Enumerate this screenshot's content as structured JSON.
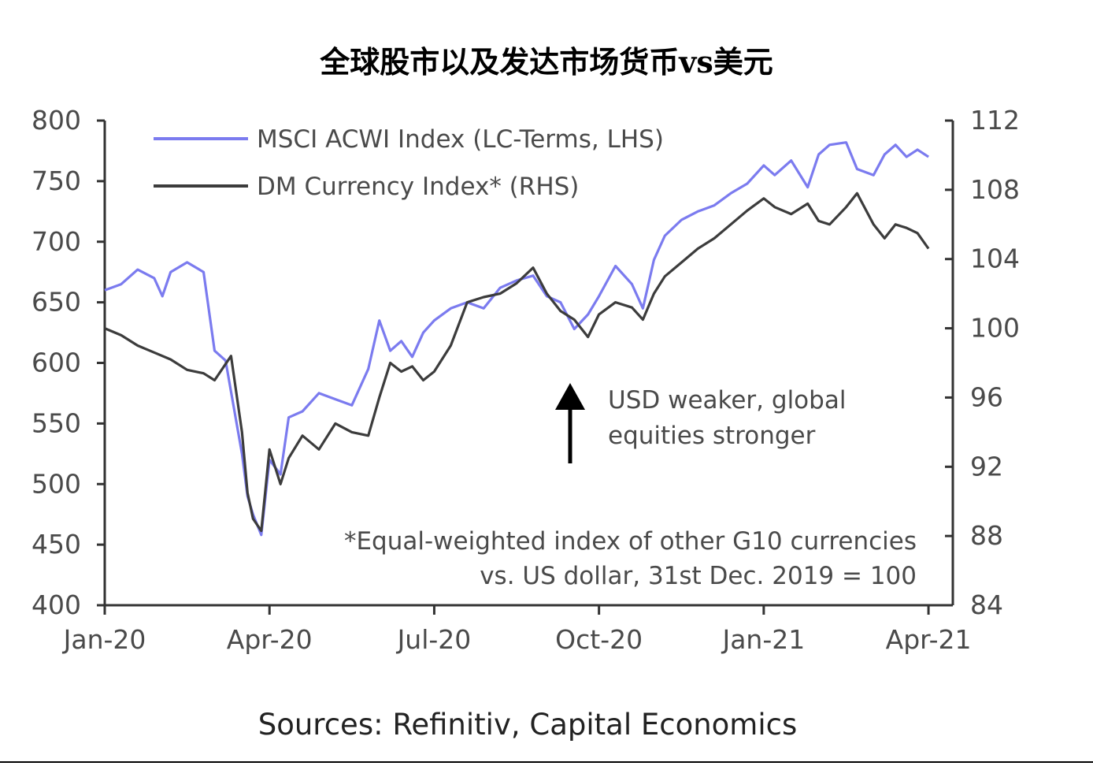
{
  "title": "全球股市以及发达市场货币vs美元",
  "source": "Sources: Refinitiv, Capital Economics",
  "chart_data": {
    "type": "line",
    "title": "全球股市以及发达市场货币vs美元",
    "x_tick_labels": [
      "Jan-20",
      "Apr-20",
      "Jul-20",
      "Oct-20",
      "Jan-21",
      "Apr-21"
    ],
    "x_tick_positions": [
      0,
      3,
      6,
      9,
      12,
      15
    ],
    "xlim": [
      0,
      15.3
    ],
    "y_left": {
      "ticks": [
        400,
        450,
        500,
        550,
        600,
        650,
        700,
        750,
        800
      ],
      "ylim": [
        400,
        800
      ]
    },
    "y_right": {
      "ticks": [
        84,
        88,
        92,
        96,
        100,
        104,
        108,
        112
      ],
      "ylim": [
        84,
        112
      ]
    },
    "legend": {
      "position": "top-left"
    },
    "series": [
      {
        "name": "MSCI ACWI Index (LC-Terms, LHS)",
        "axis": "left",
        "color": "#7b7bef",
        "x": [
          0,
          0.3,
          0.6,
          0.9,
          1.05,
          1.2,
          1.5,
          1.8,
          2.0,
          2.2,
          2.5,
          2.6,
          2.7,
          2.85,
          3.0,
          3.2,
          3.35,
          3.6,
          3.9,
          4.2,
          4.5,
          4.8,
          5.0,
          5.2,
          5.4,
          5.6,
          5.8,
          6.0,
          6.3,
          6.6,
          6.9,
          7.2,
          7.5,
          7.8,
          8.05,
          8.3,
          8.55,
          8.8,
          9.0,
          9.3,
          9.6,
          9.8,
          10.0,
          10.2,
          10.5,
          10.8,
          11.1,
          11.4,
          11.7,
          12.0,
          12.2,
          12.5,
          12.8,
          13.0,
          13.2,
          13.5,
          13.7,
          14.0,
          14.2,
          14.4,
          14.6,
          14.8,
          15.0
        ],
        "y": [
          660,
          665,
          677,
          670,
          655,
          675,
          683,
          675,
          610,
          602,
          525,
          490,
          475,
          458,
          520,
          508,
          555,
          560,
          575,
          570,
          565,
          595,
          635,
          610,
          618,
          605,
          625,
          635,
          645,
          650,
          645,
          662,
          668,
          672,
          655,
          650,
          628,
          640,
          655,
          680,
          665,
          645,
          685,
          705,
          718,
          725,
          730,
          740,
          748,
          763,
          755,
          767,
          745,
          772,
          780,
          782,
          760,
          755,
          772,
          780,
          770,
          776,
          770
        ]
      },
      {
        "name": "DM Currency Index* (RHS)",
        "axis": "right",
        "color": "#3c3c3c",
        "x": [
          0,
          0.3,
          0.6,
          0.9,
          1.2,
          1.5,
          1.8,
          2.0,
          2.3,
          2.5,
          2.6,
          2.7,
          2.85,
          3.0,
          3.2,
          3.35,
          3.6,
          3.9,
          4.2,
          4.5,
          4.8,
          5.0,
          5.2,
          5.4,
          5.6,
          5.8,
          6.0,
          6.3,
          6.6,
          6.9,
          7.2,
          7.5,
          7.8,
          8.05,
          8.3,
          8.55,
          8.8,
          9.0,
          9.3,
          9.6,
          9.8,
          10.0,
          10.2,
          10.5,
          10.8,
          11.1,
          11.4,
          11.7,
          12.0,
          12.2,
          12.5,
          12.8,
          13.0,
          13.2,
          13.5,
          13.7,
          14.0,
          14.2,
          14.4,
          14.6,
          14.8,
          15.0
        ],
        "y": [
          100.0,
          99.6,
          99.0,
          98.6,
          98.2,
          97.6,
          97.4,
          97.0,
          98.4,
          94.0,
          90.5,
          89.0,
          88.3,
          93.0,
          91.0,
          92.5,
          93.8,
          93.0,
          94.5,
          94.0,
          93.8,
          96.0,
          98.0,
          97.5,
          97.8,
          97.0,
          97.5,
          99.0,
          101.5,
          101.8,
          102.0,
          102.6,
          103.5,
          102.0,
          101.0,
          100.5,
          99.5,
          100.8,
          101.5,
          101.2,
          100.5,
          102.0,
          103.0,
          103.8,
          104.6,
          105.2,
          106.0,
          106.8,
          107.5,
          107.0,
          106.6,
          107.2,
          106.2,
          106.0,
          107.0,
          107.8,
          106.0,
          105.2,
          106.0,
          105.8,
          105.5,
          104.6
        ]
      }
    ],
    "annotations": [
      {
        "text_lines": [
          "USD weaker, global",
          "equities stronger"
        ],
        "arrow": "up"
      },
      {
        "text_lines": [
          "*Equal-weighted index of other G10 currencies",
          "vs. US dollar, 31st Dec. 2019 = 100"
        ]
      }
    ]
  }
}
